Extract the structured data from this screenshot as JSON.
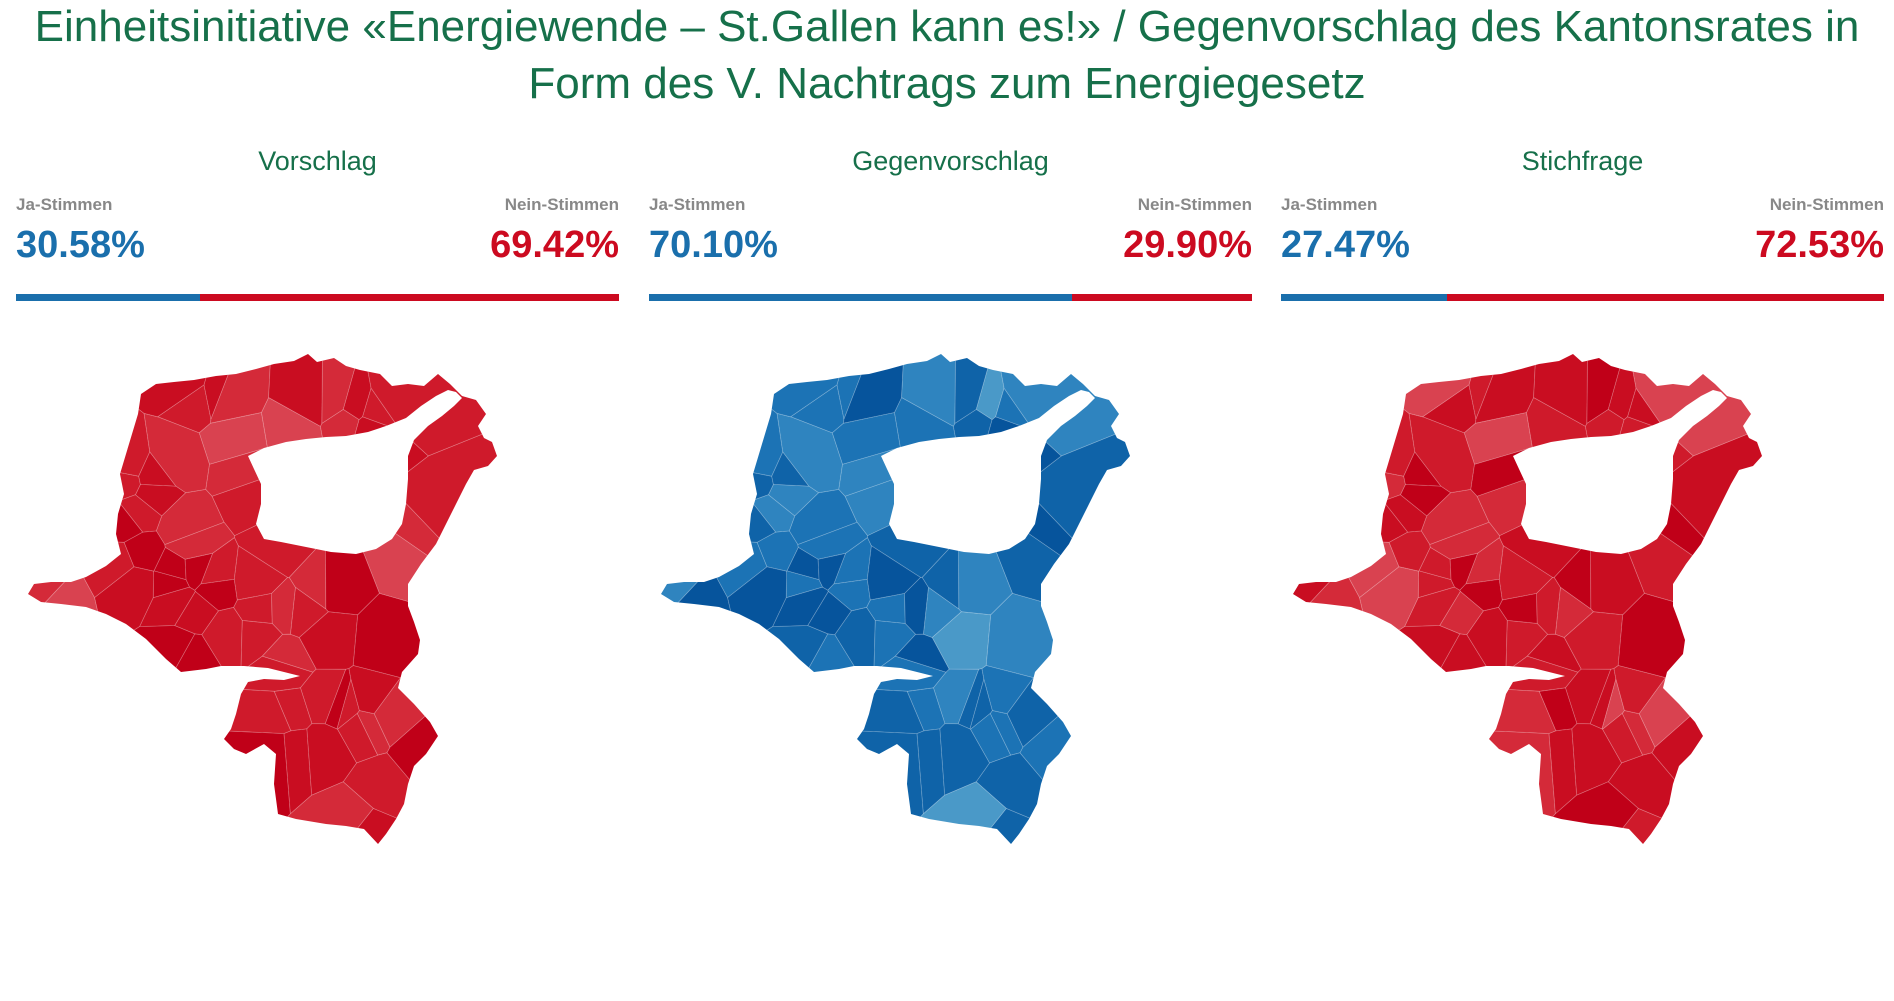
{
  "title": "Einheitsinitiative «Energiewende – St.Gallen kann es!» / Gegenvorschlag des Kantonsrates in Form des V. Nachtrags zum Energiegesetz",
  "labels": {
    "yes": "Ja-Stimmen",
    "no": "Nein-Stimmen"
  },
  "colors": {
    "yes": "#1a6fac",
    "no": "#cc0a20",
    "title": "#16704a",
    "yes_map_shades": [
      "#4a99c8",
      "#2f84bf",
      "#1c73b5",
      "#0f63a8",
      "#06549c"
    ],
    "no_map_shades": [
      "#d94250",
      "#d42a39",
      "#cf1a2b",
      "#c90d21",
      "#c00018"
    ]
  },
  "panels": [
    {
      "heading": "Vorschlag",
      "yes_pct_text": "30.58%",
      "no_pct_text": "69.42%",
      "yes_share": 0.3058,
      "map_color": "no"
    },
    {
      "heading": "Gegenvorschlag",
      "yes_pct_text": "70.10%",
      "no_pct_text": "29.90%",
      "yes_share": 0.701,
      "map_color": "yes"
    },
    {
      "heading": "Stichfrage",
      "yes_pct_text": "27.47%",
      "no_pct_text": "72.53%",
      "yes_share": 0.2747,
      "map_color": "no"
    }
  ]
}
